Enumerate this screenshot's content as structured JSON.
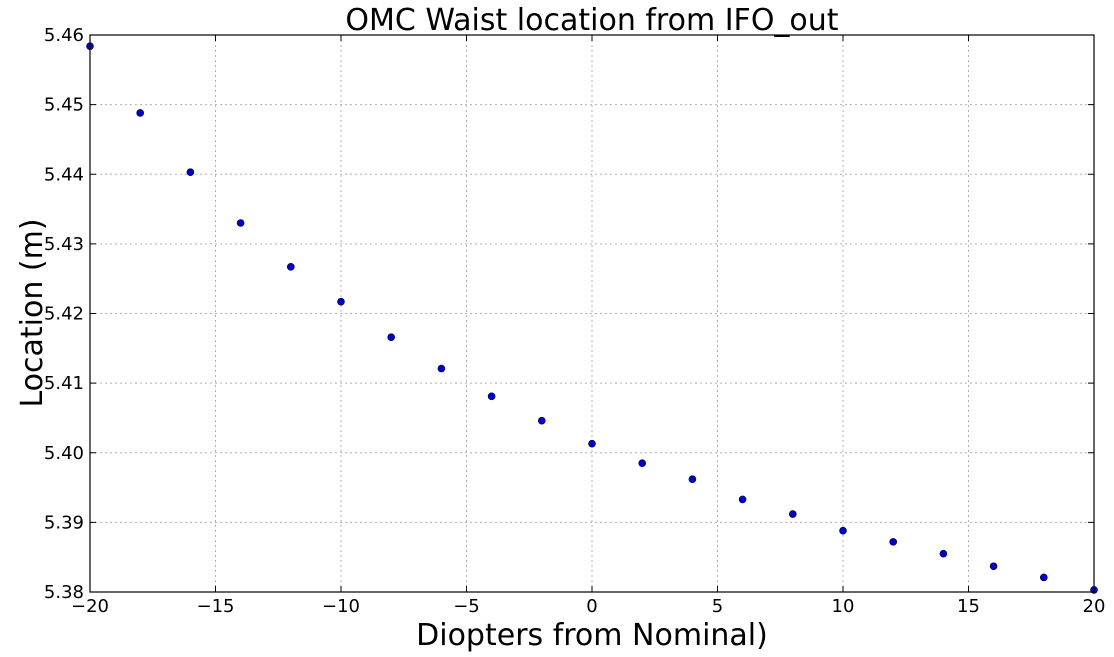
{
  "chart_data": {
    "type": "scatter",
    "title": "OMC Waist location from IFO_out",
    "xlabel": "Diopters from Nominal)",
    "ylabel": "Location (m)",
    "xlim": [
      -20,
      20
    ],
    "ylim": [
      5.38,
      5.46
    ],
    "xticks": [
      -20,
      -15,
      -10,
      -5,
      0,
      5,
      10,
      15,
      20
    ],
    "xtick_labels": [
      "−20",
      "−15",
      "−10",
      "−5",
      "0",
      "5",
      "10",
      "15",
      "20"
    ],
    "yticks": [
      5.38,
      5.39,
      5.4,
      5.41,
      5.42,
      5.43,
      5.44,
      5.45,
      5.46
    ],
    "ytick_labels": [
      "5.38",
      "5.39",
      "5.40",
      "5.41",
      "5.42",
      "5.43",
      "5.44",
      "5.45",
      "5.46"
    ],
    "grid": true,
    "marker_color": "#0000cc",
    "series": [
      {
        "x": [
          -20,
          -18,
          -16,
          -14,
          -12,
          -10,
          -8,
          -6,
          -4,
          -2,
          0,
          2,
          4,
          6,
          8,
          10,
          12,
          14,
          16,
          18,
          20
        ],
        "y": [
          5.4584,
          5.4488,
          5.4403,
          5.433,
          5.4267,
          5.4217,
          5.4166,
          5.4121,
          5.4081,
          5.4046,
          5.4013,
          5.3985,
          5.3962,
          5.3933,
          5.3912,
          5.3888,
          5.3872,
          5.3855,
          5.3837,
          5.3821,
          5.3803
        ]
      }
    ]
  }
}
